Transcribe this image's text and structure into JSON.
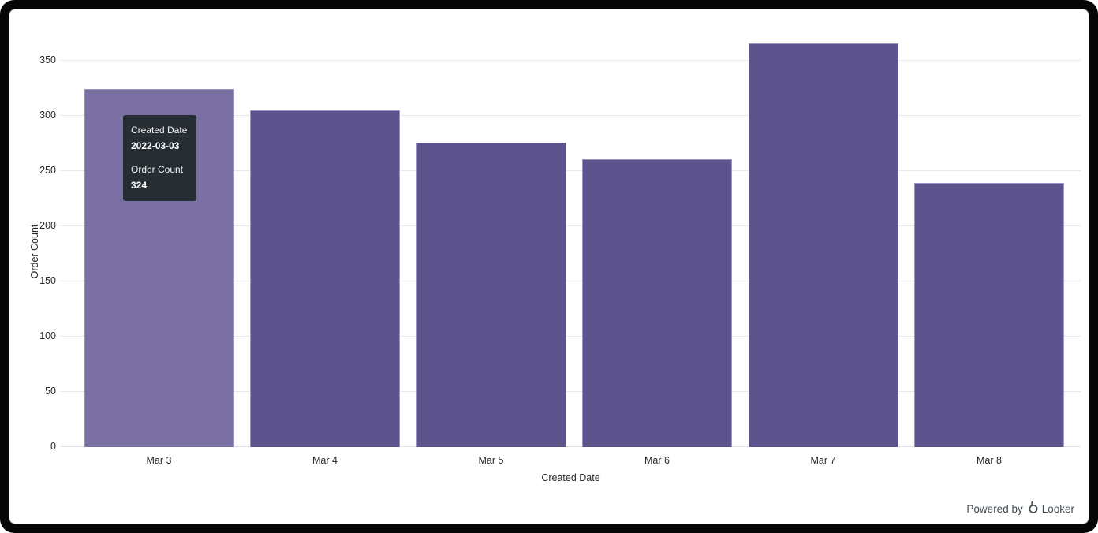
{
  "chart_data": {
    "type": "bar",
    "title": "",
    "categories": [
      "Mar 3",
      "Mar 4",
      "Mar 5",
      "Mar 6",
      "Mar 7",
      "Mar 8"
    ],
    "values": [
      324,
      305,
      276,
      261,
      366,
      239
    ],
    "xlabel": "Created Date",
    "ylabel": "Order Count",
    "ylim": [
      0,
      370
    ],
    "yticks": [
      0,
      50,
      100,
      150,
      200,
      250,
      300,
      350
    ],
    "grid": true,
    "legend": "none",
    "bar_color": "#5d548e",
    "bar_hover_color": "#7a6fa3",
    "bar_border_color": "#9b93c4",
    "hovered_index": 0,
    "grid_color": "#e8e8e8"
  },
  "tooltip": {
    "dimension_label": "Created Date",
    "dimension_value": "2022-03-03",
    "measure_label": "Order Count",
    "measure_value": "324",
    "bg_color": "#262d33"
  },
  "footer": {
    "powered_by": "Powered by",
    "brand": "Looker"
  }
}
